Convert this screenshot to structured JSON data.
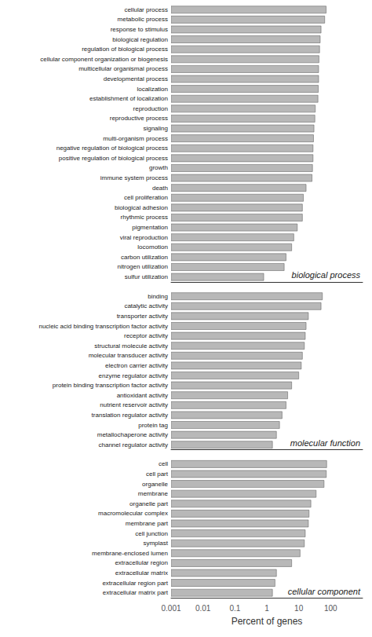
{
  "chart_data": [
    {
      "type": "bar",
      "orientation": "horizontal",
      "log": "x",
      "tick_labels": "y",
      "annotation": "biological process",
      "color": "#b8b8b8",
      "xlim": [
        0.001,
        1000
      ],
      "categories": [
        "cellular process",
        "metabolic process",
        "response to stimulus",
        "biological regulation",
        "regulation of biological process",
        "cellular component organization or biogenesis",
        "multicellular organismal process",
        "developmental process",
        "localization",
        "establishment of localization",
        "reproduction",
        "reproductive process",
        "signaling",
        "multi-organism process",
        "negative regulation of biological process",
        "positive regulation of biological process",
        "growth",
        "immune system process",
        "death",
        "cell proliferation",
        "biological adhesion",
        "rhythmic process",
        "pigmentation",
        "viral reproduction",
        "locomotion",
        "carbon utilization",
        "nitrogen utilization",
        "sulfur utilization"
      ],
      "values": [
        72,
        65,
        50,
        47,
        45,
        43,
        42,
        42,
        41,
        40,
        33,
        32,
        30,
        29,
        28,
        28,
        27,
        26,
        17,
        14,
        13,
        13,
        9,
        7,
        6,
        4,
        3.5,
        0.8
      ]
    },
    {
      "type": "bar",
      "orientation": "horizontal",
      "log": "x",
      "tick_labels": "y",
      "annotation": "molecular function",
      "color": "#b8b8b8",
      "xlim": [
        0.001,
        1000
      ],
      "categories": [
        "binding",
        "catalytic activity",
        "transporter activity",
        "nucleic acid binding transcription factor activity",
        "receptor activity",
        "structural molecule activity",
        "molecular transducer activity",
        "electron carrier activity",
        "enzyme regulator activity",
        "protein binding transcription factor activity",
        "antioxidant activity",
        "nutrient reservoir activity",
        "translation regulator activity",
        "protein tag",
        "metallochaperone activity",
        "channel regulator activity"
      ],
      "values": [
        55,
        50,
        20,
        17,
        16,
        15,
        13,
        12,
        10,
        6,
        4.5,
        4,
        3,
        2.5,
        2.0,
        1.5
      ]
    },
    {
      "type": "bar",
      "orientation": "horizontal",
      "log": "x",
      "annotation": "cellular component",
      "color": "#b8b8b8",
      "xlabel": "Percent of genes",
      "xlim": [
        0.001,
        1000
      ],
      "xticks": [
        0.001,
        0.01,
        0.1,
        1,
        10,
        100
      ],
      "categories": [
        "cell",
        "cell part",
        "organelle",
        "membrane",
        "organelle part",
        "macromolecular complex",
        "membrane part",
        "cell junction",
        "symplast",
        "membrane-enclosed lumen",
        "extracellular region",
        "extracellular matrix",
        "extracellular region part",
        "extracellular matrix part"
      ],
      "values": [
        75,
        73,
        62,
        35,
        24,
        21,
        20,
        16,
        15,
        11,
        6,
        2.0,
        1.8,
        1.5
      ]
    }
  ]
}
